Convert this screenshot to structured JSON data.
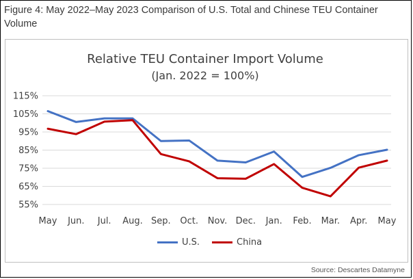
{
  "figure": {
    "caption": "Figure 4: May 2022–May 2023 Comparison of U.S. Total and Chinese TEU Container Volume",
    "source": "Source: Descartes Datamyne"
  },
  "chart_data": {
    "type": "line",
    "title": "Relative TEU Container Import  Volume",
    "subtitle": "(Jan. 2022 = 100%)",
    "xlabel": "",
    "ylabel": "",
    "categories": [
      "May",
      "Jun.",
      "Jul.",
      "Aug.",
      "Sep.",
      "Oct.",
      "Nov.",
      "Dec.",
      "Jan.",
      "Feb.",
      "Mar.",
      "Apr.",
      "May"
    ],
    "y_ticks": [
      "55%",
      "65%",
      "75%",
      "85%",
      "95%",
      "105%",
      "115%"
    ],
    "ylim": [
      55,
      115
    ],
    "grid": true,
    "legend_position": "bottom",
    "series": [
      {
        "name": "U.S.",
        "color": "#4472C4",
        "values": [
          106.5,
          100.5,
          102.5,
          102.5,
          90,
          90.3,
          79.2,
          78.2,
          84.2,
          70.2,
          75.2,
          82.2,
          85.2
        ]
      },
      {
        "name": "China",
        "color": "#C00000",
        "values": [
          96.8,
          93.8,
          100.7,
          101.5,
          82.8,
          78.8,
          69.5,
          69.2,
          77.3,
          64.2,
          59.5,
          75.3,
          79.2
        ]
      }
    ]
  }
}
